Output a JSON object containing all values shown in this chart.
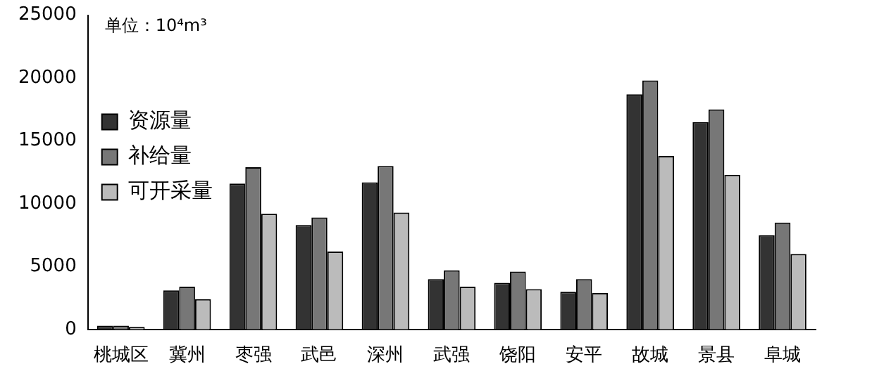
{
  "chart_data": {
    "type": "bar",
    "categories": [
      "桃城区",
      "冀州",
      "枣强",
      "武邑",
      "深州",
      "武强",
      "饶阳",
      "安平",
      "故城",
      "景县",
      "阜城"
    ],
    "series": [
      {
        "name": "资源量",
        "color": "#333333",
        "values": [
          300,
          3100,
          11600,
          8300,
          11700,
          4000,
          3700,
          3000,
          18700,
          16500,
          7500
        ]
      },
      {
        "name": "补给量",
        "color": "#777777",
        "values": [
          300,
          3400,
          12900,
          8900,
          13000,
          4700,
          4600,
          4000,
          19800,
          17500,
          8500
        ]
      },
      {
        "name": "可开采量",
        "color": "#bbbbbb",
        "values": [
          200,
          2400,
          9200,
          6200,
          9300,
          3400,
          3200,
          2900,
          13800,
          12300,
          6000
        ]
      }
    ],
    "ylim": [
      0,
      25000
    ],
    "yticks": [
      0,
      5000,
      10000,
      15000,
      20000,
      25000
    ],
    "grid": false,
    "legend": "top",
    "annotations": [
      "单位：10⁴m³"
    ]
  }
}
